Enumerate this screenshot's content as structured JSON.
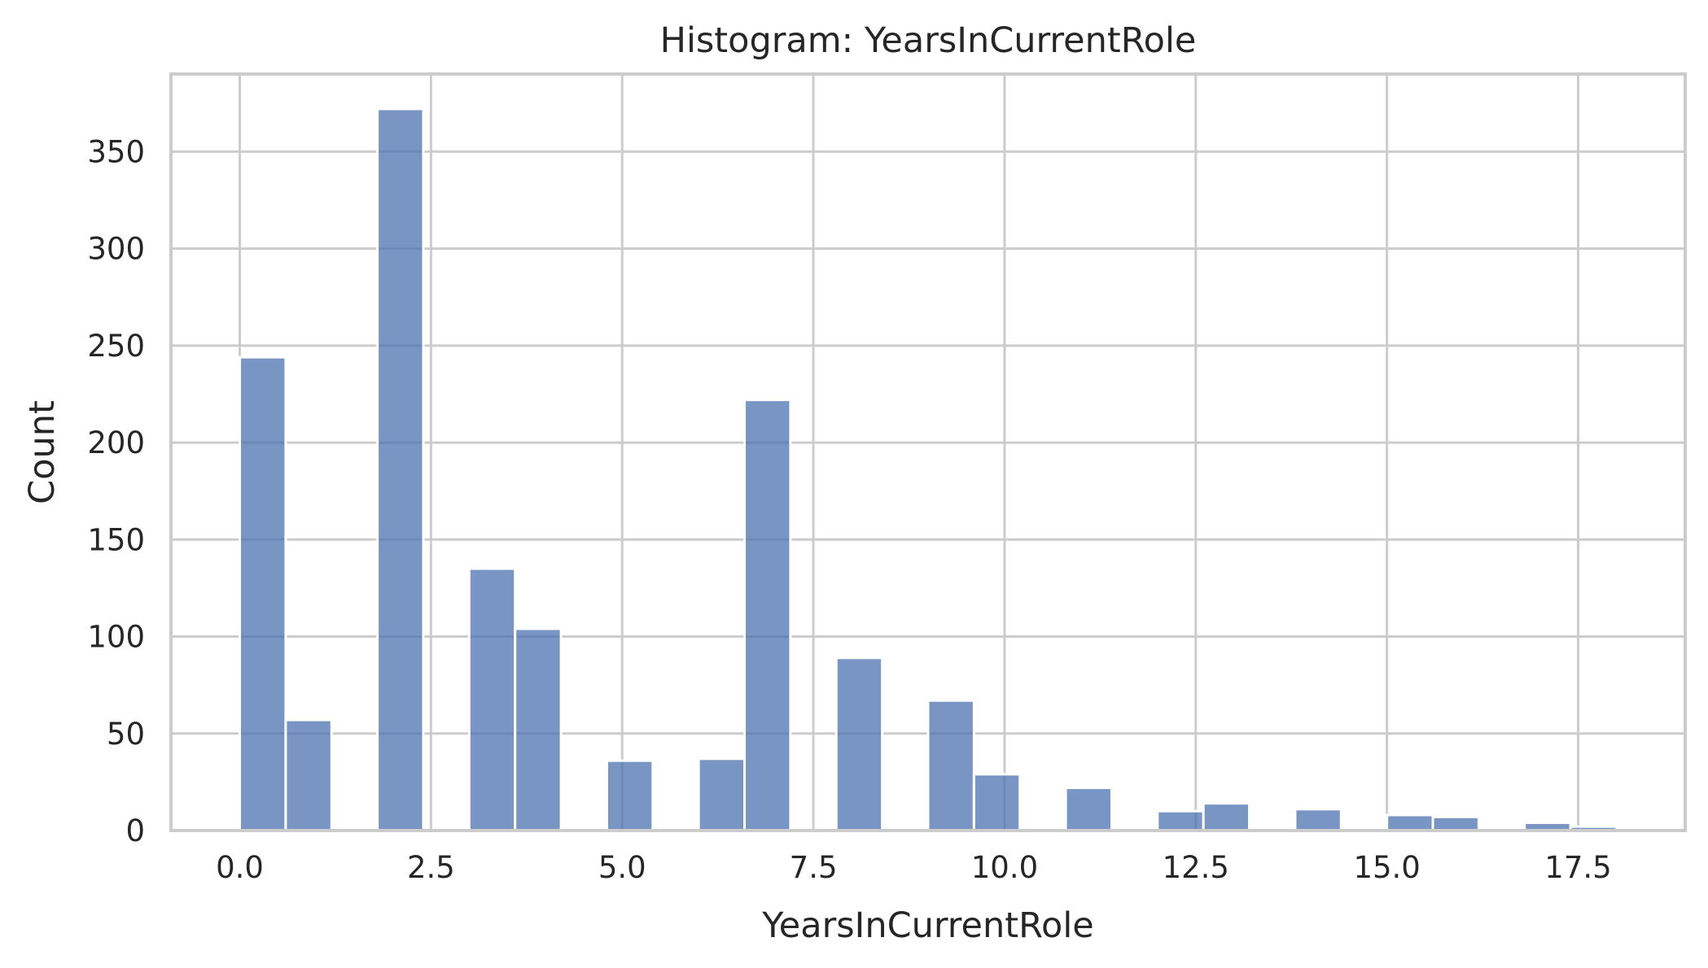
{
  "chart_data": {
    "type": "bar",
    "title": "Histogram: YearsInCurrentRole",
    "xlabel": "YearsInCurrentRole",
    "ylabel": "Count",
    "xlim": [
      -0.9,
      18.9
    ],
    "ylim": [
      0,
      390
    ],
    "x_ticks": [
      0.0,
      2.5,
      5.0,
      7.5,
      10.0,
      12.5,
      15.0,
      17.5
    ],
    "x_tick_labels": [
      "0.0",
      "2.5",
      "5.0",
      "7.5",
      "10.0",
      "12.5",
      "15.0",
      "17.5"
    ],
    "y_ticks": [
      0,
      50,
      100,
      150,
      200,
      250,
      300,
      350
    ],
    "y_tick_labels": [
      "0",
      "50",
      "100",
      "150",
      "200",
      "250",
      "300",
      "350"
    ],
    "grid": true,
    "bar_color": "#4C72B0",
    "bar_opacity": 0.75,
    "bins": [
      {
        "x0": 0.0,
        "x1": 0.6,
        "count": 244
      },
      {
        "x0": 0.6,
        "x1": 1.2,
        "count": 57
      },
      {
        "x0": 1.8,
        "x1": 2.4,
        "count": 372
      },
      {
        "x0": 3.0,
        "x1": 3.6,
        "count": 135
      },
      {
        "x0": 3.6,
        "x1": 4.2,
        "count": 104
      },
      {
        "x0": 4.8,
        "x1": 5.4,
        "count": 36
      },
      {
        "x0": 6.0,
        "x1": 6.6,
        "count": 37
      },
      {
        "x0": 6.6,
        "x1": 7.2,
        "count": 222
      },
      {
        "x0": 7.8,
        "x1": 8.4,
        "count": 89
      },
      {
        "x0": 9.0,
        "x1": 9.6,
        "count": 67
      },
      {
        "x0": 9.6,
        "x1": 10.2,
        "count": 29
      },
      {
        "x0": 10.8,
        "x1": 11.4,
        "count": 22
      },
      {
        "x0": 12.0,
        "x1": 12.6,
        "count": 10
      },
      {
        "x0": 12.6,
        "x1": 13.2,
        "count": 14
      },
      {
        "x0": 13.8,
        "x1": 14.4,
        "count": 11
      },
      {
        "x0": 15.0,
        "x1": 15.6,
        "count": 8
      },
      {
        "x0": 15.6,
        "x1": 16.2,
        "count": 7
      },
      {
        "x0": 16.8,
        "x1": 17.4,
        "count": 4
      },
      {
        "x0": 17.4,
        "x1": 18.0,
        "count": 2
      }
    ]
  }
}
